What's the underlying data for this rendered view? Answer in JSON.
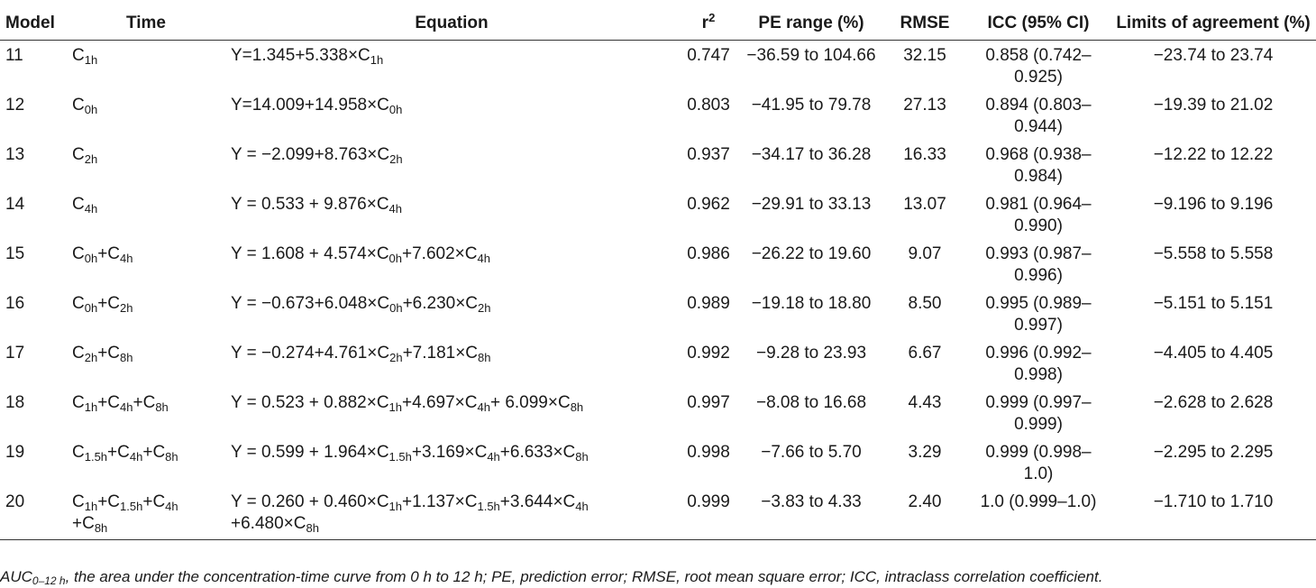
{
  "headers": {
    "model": "Model",
    "time": "Time",
    "equation": "Equation",
    "r2_base": "r",
    "r2_sup": "2",
    "pe": "PE range (%)",
    "rmse": "RMSE",
    "icc": "ICC (95% CI)",
    "loa": "Limits of agreement (%)"
  },
  "rows": [
    {
      "model": "11",
      "time": [
        [
          "C",
          "1h"
        ]
      ],
      "equation": [
        [
          "Y=1.345+5.338×C",
          ""
        ],
        [
          "",
          "1h"
        ]
      ],
      "r2": "0.747",
      "pe": "−36.59 to 104.66",
      "rmse": "32.15",
      "icc": "0.858 (0.742–0.925)",
      "loa": "−23.74 to 23.74"
    },
    {
      "model": "12",
      "time": [
        [
          "C",
          "0h"
        ]
      ],
      "equation": [
        [
          "Y=14.009+14.958×C",
          ""
        ],
        [
          "",
          "0h"
        ]
      ],
      "r2": "0.803",
      "pe": "−41.95 to 79.78",
      "rmse": "27.13",
      "icc": "0.894 (0.803–0.944)",
      "loa": "−19.39 to 21.02"
    },
    {
      "model": "13",
      "time": [
        [
          "C",
          "2h"
        ]
      ],
      "equation": [
        [
          "Y = −2.099+8.763×C",
          ""
        ],
        [
          "",
          "2h"
        ]
      ],
      "r2": "0.937",
      "pe": "−34.17 to 36.28",
      "rmse": "16.33",
      "icc": "0.968 (0.938–0.984)",
      "loa": "−12.22 to 12.22"
    },
    {
      "model": "14",
      "time": [
        [
          "C",
          "4h"
        ]
      ],
      "equation": [
        [
          "Y = 0.533 + 9.876×C",
          ""
        ],
        [
          "",
          "4h"
        ]
      ],
      "r2": "0.962",
      "pe": "−29.91 to 33.13",
      "rmse": "13.07",
      "icc": "0.981 (0.964–0.990)",
      "loa": "−9.196 to 9.196"
    },
    {
      "model": "15",
      "time": [
        [
          "C",
          "0h"
        ],
        [
          "+C",
          "4h"
        ]
      ],
      "equation": [
        [
          "Y = 1.608 + 4.574×C",
          ""
        ],
        [
          "",
          "0h"
        ],
        [
          "+7.602×C",
          ""
        ],
        [
          "",
          "4h"
        ]
      ],
      "r2": "0.986",
      "pe": "−26.22 to 19.60",
      "rmse": "9.07",
      "icc": "0.993 (0.987–0.996)",
      "loa": "−5.558 to 5.558"
    },
    {
      "model": "16",
      "time": [
        [
          "C",
          "0h"
        ],
        [
          "+C",
          "2h"
        ]
      ],
      "equation": [
        [
          "Y = −0.673+6.048×C",
          ""
        ],
        [
          "",
          "0h"
        ],
        [
          "+6.230×C",
          ""
        ],
        [
          "",
          "2h"
        ]
      ],
      "r2": "0.989",
      "pe": "−19.18 to 18.80",
      "rmse": "8.50",
      "icc": "0.995 (0.989–0.997)",
      "loa": "−5.151 to 5.151"
    },
    {
      "model": "17",
      "time": [
        [
          "C",
          "2h"
        ],
        [
          "+C",
          "8h"
        ]
      ],
      "equation": [
        [
          "Y = −0.274+4.761×C",
          ""
        ],
        [
          "",
          "2h"
        ],
        [
          "+7.181×C",
          ""
        ],
        [
          "",
          "8h"
        ]
      ],
      "r2": "0.992",
      "pe": "−9.28 to 23.93",
      "rmse": "6.67",
      "icc": "0.996 (0.992–0.998)",
      "loa": "−4.405 to 4.405"
    },
    {
      "model": "18",
      "time": [
        [
          "C",
          "1h"
        ],
        [
          "+C",
          "4h"
        ],
        [
          "+C",
          "8h"
        ]
      ],
      "equation": [
        [
          "Y = 0.523 + 0.882×C",
          ""
        ],
        [
          "",
          "1h"
        ],
        [
          "+4.697×C",
          ""
        ],
        [
          "",
          "4h"
        ],
        [
          "+ 6.099×C",
          ""
        ],
        [
          "",
          "8h"
        ]
      ],
      "r2": "0.997",
      "pe": "−8.08 to 16.68",
      "rmse": "4.43",
      "icc": "0.999 (0.997–0.999)",
      "loa": "−2.628 to 2.628"
    },
    {
      "model": "19",
      "time": [
        [
          "C",
          "1.5h"
        ],
        [
          "+C",
          "4h"
        ],
        [
          "+C",
          "8h"
        ]
      ],
      "equation": [
        [
          "Y = 0.599 + 1.964×C",
          ""
        ],
        [
          "",
          "1.5h"
        ],
        [
          "+3.169×C",
          ""
        ],
        [
          "",
          "4h"
        ],
        [
          "+6.633×C",
          ""
        ],
        [
          "",
          "8h"
        ]
      ],
      "r2": "0.998",
      "pe": "−7.66 to 5.70",
      "rmse": "3.29",
      "icc": "0.999 (0.998–1.0)",
      "loa": "−2.295 to 2.295"
    },
    {
      "model": "20",
      "time": [
        [
          "C",
          "1h"
        ],
        [
          "+C",
          "1.5h"
        ],
        [
          "+C",
          "4h"
        ],
        [
          "<br>+C",
          "8h"
        ]
      ],
      "equation": [
        [
          "Y = 0.260 + 0.460×C",
          ""
        ],
        [
          "",
          "1h"
        ],
        [
          "+1.137×C",
          ""
        ],
        [
          "",
          "1.5h"
        ],
        [
          "+3.644×C",
          ""
        ],
        [
          "",
          "4h"
        ],
        [
          "<br>+6.480×C",
          ""
        ],
        [
          "",
          "8h"
        ]
      ],
      "r2": "0.999",
      "pe": "−3.83 to 4.33",
      "rmse": "2.40",
      "icc": "1.0 (0.999–1.0)",
      "loa": "−1.710 to 1.710"
    }
  ],
  "footnote": {
    "auc": "AUC",
    "auc_sub": "0–12 h",
    "text": ", the area under the concentration-time curve from 0 h to 12 h; PE, prediction error; RMSE, root mean square error; ICC, intraclass correlation coefficient."
  }
}
